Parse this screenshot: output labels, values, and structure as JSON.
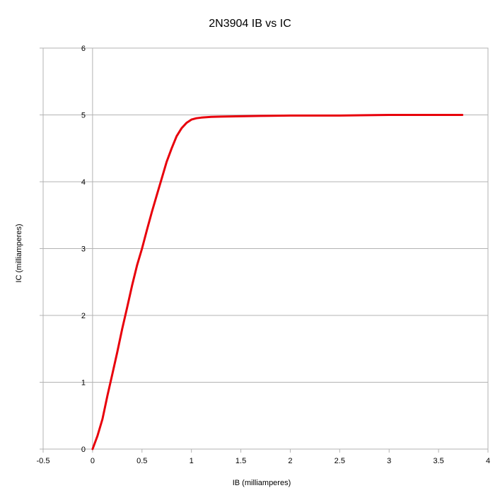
{
  "chart_data": {
    "type": "line",
    "title": "2N3904 IB vs IC",
    "xlabel": "IB (milliamperes)",
    "ylabel": "IC (milliamperes)",
    "xlim": [
      -0.5,
      4
    ],
    "ylim": [
      0,
      6
    ],
    "x_ticks": [
      "-0.5",
      "0",
      "0.5",
      "1",
      "1.5",
      "2",
      "2.5",
      "3",
      "3.5",
      "4"
    ],
    "y_ticks": [
      "0",
      "1",
      "2",
      "3",
      "4",
      "5",
      "6"
    ],
    "grid": "horizontal",
    "legend": "none",
    "series": [
      {
        "color": "#e8000b",
        "x": [
          0,
          0.05,
          0.1,
          0.15,
          0.2,
          0.25,
          0.3,
          0.35,
          0.4,
          0.45,
          0.5,
          0.55,
          0.6,
          0.65,
          0.7,
          0.75,
          0.8,
          0.85,
          0.9,
          0.95,
          1.0,
          1.05,
          1.1,
          1.2,
          1.3,
          1.5,
          1.7,
          2.0,
          2.5,
          3.0,
          3.5,
          3.74
        ],
        "y": [
          0,
          0.2,
          0.45,
          0.8,
          1.12,
          1.45,
          1.8,
          2.12,
          2.45,
          2.75,
          3.0,
          3.28,
          3.55,
          3.8,
          4.05,
          4.3,
          4.5,
          4.68,
          4.8,
          4.88,
          4.93,
          4.95,
          4.96,
          4.97,
          4.975,
          4.98,
          4.985,
          4.99,
          4.99,
          5.0,
          5.0,
          5.0
        ]
      }
    ]
  }
}
